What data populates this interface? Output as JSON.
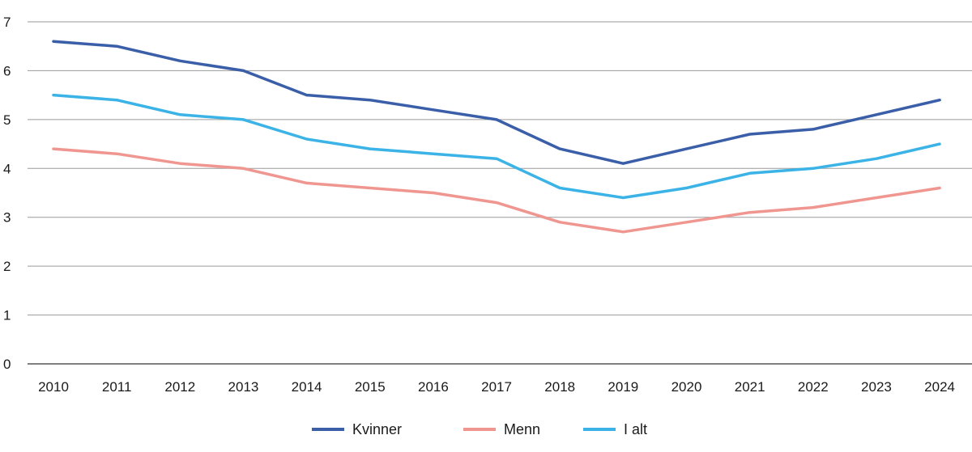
{
  "chart_data": {
    "type": "line",
    "title": "",
    "xlabel": "",
    "ylabel": "",
    "ylim": [
      0,
      7
    ],
    "yticks": [
      "0",
      "1",
      "2",
      "3",
      "4",
      "5",
      "6",
      "7"
    ],
    "grid": "horizontal",
    "legend_position": "bottom-center",
    "categories": [
      "2010",
      "2011",
      "2012",
      "2013",
      "2014",
      "2015",
      "2016",
      "2017",
      "2018",
      "2019",
      "2020",
      "2021",
      "2022",
      "2023",
      "2024"
    ],
    "series": [
      {
        "name": "Kvinner",
        "color": "#3a5ea8",
        "values": [
          6.6,
          6.5,
          6.2,
          6.0,
          5.5,
          5.4,
          5.2,
          5.0,
          4.4,
          4.1,
          4.4,
          4.7,
          4.8,
          5.1,
          5.4
        ]
      },
      {
        "name": "Menn",
        "color": "#f09690",
        "values": [
          4.4,
          4.3,
          4.1,
          4.0,
          3.7,
          3.6,
          3.5,
          3.3,
          2.9,
          2.7,
          2.9,
          3.1,
          3.2,
          3.4,
          3.6
        ]
      },
      {
        "name": "I alt",
        "color": "#3bb3e6",
        "values": [
          5.5,
          5.4,
          5.1,
          5.0,
          4.6,
          4.4,
          4.3,
          4.2,
          3.6,
          3.4,
          3.6,
          3.9,
          4.0,
          4.2,
          4.5
        ]
      }
    ]
  }
}
